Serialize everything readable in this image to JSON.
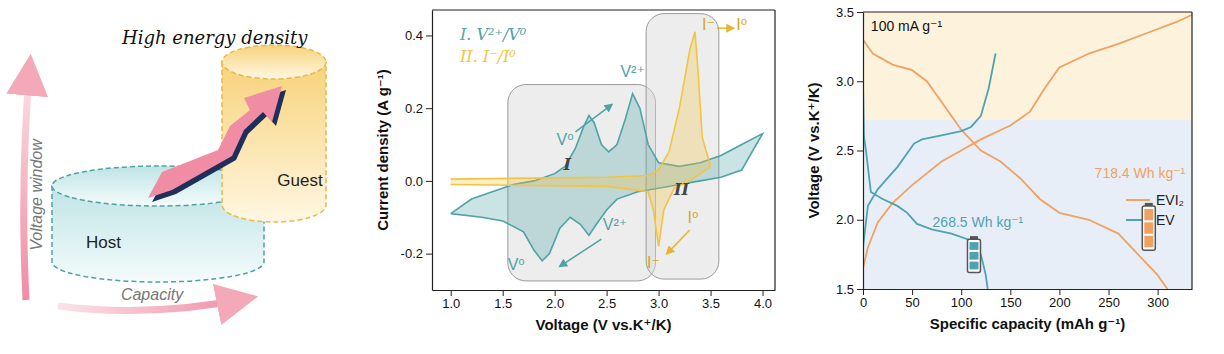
{
  "diagram": {
    "title": "High energy density",
    "y_arrow": "Voltage window",
    "x_arrow": "Capacity",
    "host": "Host",
    "guest": "Guest"
  },
  "chart_data": [
    {
      "type": "line",
      "x_label": "Voltage (V vs.K⁺/K)",
      "y_label": "Current density (A g⁻¹)",
      "xlim": [
        0.82,
        4.12
      ],
      "ylim": [
        -0.3,
        0.47
      ],
      "xticks": [
        {
          "value": 1,
          "label": "1.0"
        },
        {
          "value": 1.5,
          "label": "1.5"
        },
        {
          "value": 2,
          "label": "2.0"
        },
        {
          "value": 2.5,
          "label": "2.5"
        },
        {
          "value": 3,
          "label": "3.0"
        },
        {
          "value": 3.5,
          "label": "3.5"
        },
        {
          "value": 4,
          "label": "4.0"
        }
      ],
      "yticks": [
        {
          "value": -0.2,
          "label": "-0.2"
        },
        {
          "value": 0,
          "label": "0.0"
        },
        {
          "value": 0.2,
          "label": "0.2"
        },
        {
          "value": 0.4,
          "label": "0.4"
        }
      ],
      "legend": "top-left",
      "series": [
        {
          "name": "I. V²⁺/V⁰",
          "color": "#4fa3a6",
          "x": [
            1.0,
            1.2,
            1.4,
            1.6,
            1.8,
            2.0,
            2.1,
            2.2,
            2.28,
            2.33,
            2.38,
            2.45,
            2.52,
            2.6,
            2.68,
            2.75,
            2.82,
            2.9,
            3.0,
            3.2,
            3.4,
            3.6,
            3.8,
            4.0,
            3.8,
            3.6,
            3.4,
            3.2,
            3.0,
            2.8,
            2.6,
            2.5,
            2.4,
            2.33,
            2.25,
            2.15,
            2.05,
            1.95,
            1.88,
            1.8,
            1.7,
            1.5,
            1.3,
            1.0
          ],
          "values": [
            -0.09,
            -0.05,
            -0.03,
            -0.01,
            0.0,
            0.02,
            0.04,
            0.09,
            0.15,
            0.18,
            0.16,
            0.1,
            0.08,
            0.1,
            0.17,
            0.24,
            0.2,
            0.1,
            0.05,
            0.04,
            0.05,
            0.07,
            0.1,
            0.13,
            0.03,
            0.01,
            0.0,
            -0.01,
            -0.02,
            -0.03,
            -0.05,
            -0.08,
            -0.12,
            -0.15,
            -0.12,
            -0.1,
            -0.13,
            -0.2,
            -0.22,
            -0.19,
            -0.14,
            -0.11,
            -0.1,
            -0.09
          ]
        },
        {
          "name": "II. I⁻/I⁰",
          "color": "#f2c443",
          "x": [
            1.0,
            2.5,
            2.9,
            3.0,
            3.1,
            3.2,
            3.3,
            3.35,
            3.38,
            3.42,
            3.5,
            3.3,
            3.15,
            3.05,
            3.0,
            2.95,
            2.9,
            2.5,
            1.0
          ],
          "values": [
            0.005,
            0.01,
            0.015,
            0.03,
            0.08,
            0.2,
            0.36,
            0.41,
            0.3,
            0.12,
            0.04,
            0.0,
            -0.02,
            -0.08,
            -0.18,
            -0.08,
            -0.03,
            -0.015,
            -0.01
          ]
        }
      ],
      "annotations": [
        "V⁰",
        "V²⁺",
        "V²⁺",
        "V⁰",
        "I⁻",
        "I⁰",
        "I⁰",
        "I⁻",
        "I",
        "II"
      ]
    },
    {
      "type": "line",
      "x_label": "Specific capacity (mAh g⁻¹)",
      "y_label": "Voltage (V vs.K⁺/K)",
      "xlim": [
        0,
        335
      ],
      "ylim": [
        1.5,
        3.5
      ],
      "xticks": [
        0,
        50,
        100,
        150,
        200,
        250,
        300
      ],
      "yticks": [
        1.5,
        {
          "value": 2,
          "label": "2.0"
        },
        2.5,
        {
          "value": 3,
          "label": "3.0"
        },
        3.5
      ],
      "legend": "right",
      "bands": [
        {
          "from": 1.5,
          "to": 2.72,
          "color": "#e8eef8"
        },
        {
          "from": 2.72,
          "to": 3.5,
          "color": "#fdf3dc"
        }
      ],
      "series": [
        {
          "name": "EVI₂",
          "color": "#f0a262",
          "x": [
            0,
            10,
            30,
            50,
            65,
            80,
            100,
            120,
            140,
            160,
            180,
            200,
            230,
            260,
            280,
            300,
            310,
            null,
            0,
            5,
            15,
            30,
            50,
            80,
            100,
            120,
            150,
            170,
            185,
            200,
            230,
            260,
            290,
            320,
            335
          ],
          "values": [
            3.3,
            3.2,
            3.12,
            3.08,
            3.0,
            2.85,
            2.65,
            2.5,
            2.42,
            2.3,
            2.15,
            2.05,
            2.0,
            1.9,
            1.75,
            1.6,
            1.5,
            null,
            1.65,
            1.8,
            1.98,
            2.12,
            2.25,
            2.42,
            2.5,
            2.58,
            2.68,
            2.78,
            2.95,
            3.1,
            3.2,
            3.27,
            3.35,
            3.43,
            3.48
          ]
        },
        {
          "name": "EV",
          "color": "#4fa3b0",
          "x": [
            0,
            1,
            3,
            8,
            20,
            35,
            45,
            55,
            70,
            90,
            110,
            120,
            125,
            127,
            null,
            0,
            5,
            15,
            25,
            35,
            45,
            52,
            60,
            80,
            100,
            110,
            120,
            128,
            135
          ],
          "values": [
            3.0,
            2.6,
            2.5,
            2.2,
            2.15,
            2.1,
            2.05,
            1.97,
            1.93,
            1.9,
            1.85,
            1.75,
            1.6,
            1.5,
            null,
            1.8,
            2.1,
            2.22,
            2.3,
            2.38,
            2.48,
            2.55,
            2.58,
            2.61,
            2.64,
            2.67,
            2.75,
            2.95,
            3.2
          ]
        }
      ],
      "annotations": [
        "100 mA g⁻¹",
        "268.5 Wh kg⁻¹",
        "718.4 Wh kg⁻¹"
      ]
    }
  ]
}
